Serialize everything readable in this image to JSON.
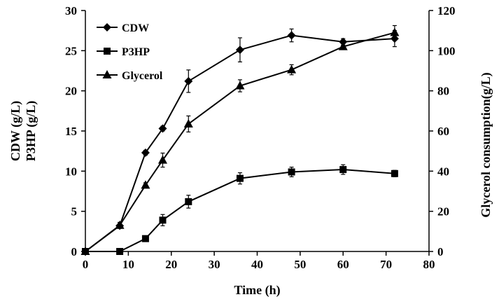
{
  "chart_data": {
    "type": "line",
    "xlabel": "Time (h)",
    "ylabel_lines": [
      "CDW (g/L)",
      "P3HP (g/L)"
    ],
    "y2label": "Glycerol consumption(g/L)",
    "xlim": [
      0,
      80
    ],
    "ylim": [
      0,
      30
    ],
    "y2lim": [
      0,
      120
    ],
    "xticks": [
      0,
      10,
      20,
      30,
      40,
      50,
      60,
      70,
      80
    ],
    "yticks": [
      0,
      5,
      10,
      15,
      20,
      25,
      30
    ],
    "y2ticks": [
      0,
      20,
      40,
      60,
      80,
      100,
      120
    ],
    "grid": false,
    "legend_position": "top-left",
    "series": [
      {
        "name": "CDW",
        "marker": "diamond",
        "axis": "left",
        "x": [
          0,
          8,
          14,
          18,
          24,
          36,
          48,
          60,
          72
        ],
        "y": [
          0,
          3.2,
          12.3,
          15.3,
          21.2,
          25.1,
          26.9,
          26.1,
          26.5
        ],
        "err": [
          0,
          0.3,
          0.3,
          0.3,
          1.4,
          1.5,
          0.8,
          0.4,
          1.0
        ]
      },
      {
        "name": "P3HP",
        "marker": "square",
        "axis": "left",
        "x": [
          0,
          8,
          14,
          18,
          24,
          36,
          48,
          60,
          72
        ],
        "y": [
          0,
          0,
          1.6,
          3.9,
          6.2,
          9.1,
          9.9,
          10.2,
          9.7
        ],
        "err": [
          0,
          0,
          0.2,
          0.7,
          0.8,
          0.7,
          0.6,
          0.6,
          0.4
        ]
      },
      {
        "name": "Glycerol",
        "marker": "triangle",
        "axis": "right",
        "x": [
          0,
          8,
          14,
          18,
          24,
          36,
          48,
          60,
          72
        ],
        "y": [
          0,
          13,
          33,
          45.5,
          63.5,
          82.5,
          90.5,
          102,
          109
        ],
        "err": [
          0,
          1.5,
          1.2,
          3.5,
          4.0,
          3.0,
          2.5,
          1.5,
          3.5
        ]
      }
    ]
  }
}
